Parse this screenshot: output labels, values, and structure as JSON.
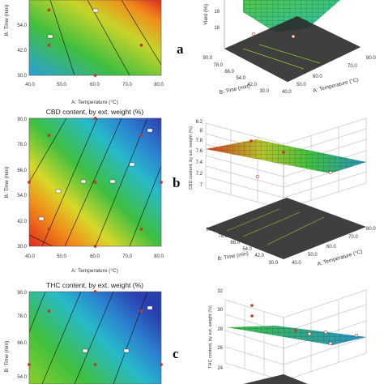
{
  "colors": {
    "low": "#2a4bb5",
    "mid": "#3fbf3f",
    "high": "#e0281e",
    "design_point": "#c0392b"
  },
  "chart_data": [
    {
      "type": "heatmap",
      "subtype": "contour",
      "panel": "a",
      "title": "",
      "xlabel": "A: Temperature (°C)",
      "ylabel": "B: Time (min)",
      "xlim": [
        40.0,
        80.0
      ],
      "ylim": [
        30.0,
        90.0
      ],
      "x_ticks": [
        "40.0",
        "50.0",
        "60.0",
        "70.0",
        "80.0"
      ],
      "y_ticks": [
        "30.0",
        "42.0",
        "54.0"
      ],
      "design_points": [
        [
          60,
          30
        ],
        [
          46,
          42
        ],
        [
          74,
          42
        ],
        [
          46,
          56
        ],
        [
          60,
          90
        ]
      ]
    },
    {
      "type": "surface",
      "panel": "a",
      "zlabel": "Yield (%)",
      "z_ticks": [
        "18",
        "19"
      ],
      "xlabel": "A: Temperature (°C)",
      "ylabel": "B: Time (min)",
      "x_ticks": [
        "40.0",
        "50.0",
        "60.0",
        "70.0",
        "80.0"
      ],
      "y_ticks": [
        "30.0",
        "42.0",
        "54.0",
        "66.0",
        "78.0",
        "90.0"
      ]
    },
    {
      "type": "heatmap",
      "subtype": "contour",
      "panel": "b",
      "title": "CBD content, by ext. weight (%)",
      "xlabel": "A: Temperature (°C)",
      "ylabel": "B: Time (min)",
      "xlim": [
        40.0,
        80.0
      ],
      "ylim": [
        30.0,
        90.0
      ],
      "x_ticks": [
        "40.0",
        "50.0",
        "60.0",
        "70.0",
        "80.0"
      ],
      "y_ticks": [
        "30.0",
        "42.0",
        "54.0",
        "66.0",
        "78.0",
        "90.0"
      ],
      "design_points": [
        [
          40,
          60
        ],
        [
          46,
          82
        ],
        [
          46,
          38
        ],
        [
          60,
          30
        ],
        [
          60,
          60
        ],
        [
          60,
          90
        ],
        [
          74,
          82
        ],
        [
          74,
          38
        ],
        [
          80,
          60
        ]
      ]
    },
    {
      "type": "surface",
      "panel": "b",
      "zlabel": "CBD content, by ext. weight (%)",
      "z_ticks": [
        "7",
        "7.2",
        "7.4",
        "7.6",
        "7.8",
        "8",
        "8.2"
      ],
      "xlabel": "A: Temperature (°C)",
      "ylabel": "B: Time (min)",
      "x_ticks": [
        "40.0",
        "50.0",
        "60.0",
        "70.0",
        "80.0"
      ],
      "y_ticks": [
        "30.0",
        "42.0",
        "54.0",
        "66.0",
        "78.0",
        "90.0"
      ]
    },
    {
      "type": "heatmap",
      "subtype": "contour",
      "panel": "c",
      "title": "THC content, by ext. weight (%)",
      "xlabel": "A: Temperature (°C)",
      "ylabel": "B: Time (min)",
      "xlim": [
        40.0,
        80.0
      ],
      "ylim": [
        30.0,
        90.0
      ],
      "x_ticks": [],
      "y_ticks": [
        "54.0",
        "66.0",
        "78.0",
        "90.0"
      ],
      "design_points": [
        [
          46,
          82
        ],
        [
          74,
          82
        ],
        [
          60,
          90
        ],
        [
          40,
          60
        ],
        [
          60,
          60
        ],
        [
          80,
          60
        ]
      ]
    },
    {
      "type": "surface",
      "panel": "c",
      "zlabel": "THC content, by ext. weight (%)",
      "z_ticks": [
        "24",
        "26",
        "28",
        "30",
        "32"
      ],
      "xlabel": "",
      "ylabel": ""
    }
  ],
  "panel_letters": [
    "a",
    "b",
    "c"
  ]
}
